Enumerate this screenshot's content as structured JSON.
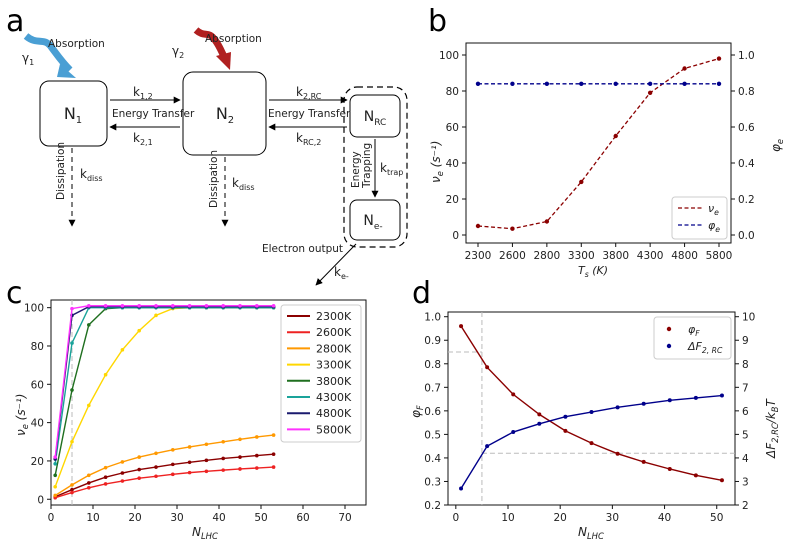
{
  "panels": {
    "a": "a",
    "b": "b",
    "c": "c",
    "d": "d"
  },
  "diagram": {
    "n1": "N",
    "n1_sub": "1",
    "n2": "N",
    "n2_sub": "2",
    "nrc": "N",
    "nrc_sub": "RC",
    "ne": "N",
    "ne_sub": "e-",
    "gamma1": "γ",
    "gamma1_sub": "1",
    "absorption1": "Absorption",
    "gamma2": "γ",
    "gamma2_sub": "2",
    "absorption2": "Absorption",
    "k12": "k",
    "k12_sub": "1,2",
    "k21": "k",
    "k21_sub": "2,1",
    "k2rc": "k",
    "k2rc_sub": "2,RC",
    "krc2": "k",
    "krc2_sub": "RC,2",
    "energy_transfer_1": "Energy Transfer",
    "energy_transfer_2": "Energy Transfer",
    "dissipation_1": "Dissipation",
    "dissipation_2": "Dissipation",
    "kdiss1": "k",
    "kdiss1_sub": "diss",
    "kdiss2": "k",
    "kdiss2_sub": "diss",
    "trapping_1": "Energy",
    "trapping_2": "Trapping",
    "ktrap": "k",
    "ktrap_sub": "trap",
    "electron_output": "Electron output",
    "ke": "k",
    "ke_sub": "e-"
  },
  "colors": {
    "blue_arrow": "#4a9fd4",
    "red_arrow": "#b02020",
    "dark_red": "#8b0000",
    "navy": "#00008b"
  },
  "chart_data": [
    {
      "id": "b",
      "type": "line",
      "categories": [
        "2300",
        "2600",
        "2800",
        "3300",
        "3800",
        "4300",
        "4800",
        "5800"
      ],
      "series": [
        {
          "name": "ν_e",
          "axis": "left",
          "color": "#8b0000",
          "values": [
            5,
            3.5,
            7.5,
            29.5,
            55,
            79,
            92.5,
            98
          ]
        },
        {
          "name": "φ_e",
          "axis": "right",
          "color": "#00008b",
          "values": [
            0.84,
            0.84,
            0.84,
            0.84,
            0.84,
            0.84,
            0.84,
            0.84
          ]
        }
      ],
      "xlabel_main": "T",
      "xlabel_sub": "s",
      "xlabel_unit": " (K)",
      "ylabel_left": "ν",
      "ylabel_left_sub": "e",
      "ylabel_left_unit": " (s⁻¹)",
      "ylabel_right": "φ",
      "ylabel_right_sub": "e",
      "ylim_left": [
        0,
        100
      ],
      "ylim_right": [
        0,
        1
      ],
      "yticks_left": [
        "0",
        "20",
        "40",
        "60",
        "80",
        "100"
      ],
      "yticks_right": [
        "0.0",
        "0.2",
        "0.4",
        "0.6",
        "0.8",
        "1.0"
      ],
      "legend": [
        {
          "label": "ν",
          "sub": "e"
        },
        {
          "label": "φ",
          "sub": "e"
        }
      ],
      "legend_position": "lower-right"
    },
    {
      "id": "c",
      "type": "line",
      "x": [
        1,
        5,
        9,
        13,
        17,
        21,
        25,
        29,
        33,
        37,
        41,
        45,
        49,
        53
      ],
      "series": [
        {
          "name": "2300K",
          "color": "#8b0000",
          "values": [
            1.3,
            5,
            8.5,
            11.5,
            13.7,
            15.5,
            16.8,
            18.2,
            19.3,
            20.3,
            21.3,
            22,
            22.8,
            23.5
          ]
        },
        {
          "name": "2600K",
          "color": "#ee2222",
          "values": [
            0.8,
            3.5,
            6,
            8,
            9.5,
            11,
            12,
            13,
            13.9,
            14.6,
            15.2,
            15.8,
            16.3,
            16.8
          ]
        },
        {
          "name": "2800K",
          "color": "#ff9900",
          "values": [
            2,
            7.5,
            12.5,
            16.5,
            19.5,
            22,
            24,
            25.8,
            27.3,
            28.7,
            30,
            31.3,
            32.5,
            33.5
          ]
        },
        {
          "name": "3300K",
          "color": "#ffd700",
          "values": [
            6.5,
            30,
            49,
            65,
            78,
            88,
            96,
            99.5,
            100,
            100,
            100,
            100,
            100,
            100
          ]
        },
        {
          "name": "3800K",
          "color": "#1f6f1f",
          "values": [
            12.5,
            57,
            91,
            99.5,
            100,
            100,
            100,
            100,
            100,
            100,
            100,
            100,
            100,
            100
          ]
        },
        {
          "name": "4300K",
          "color": "#1aa39a",
          "values": [
            18.5,
            81.5,
            100,
            100,
            100,
            100,
            100,
            100,
            100,
            100,
            100,
            100,
            100,
            100
          ]
        },
        {
          "name": "4800K",
          "color": "#1a1a6e",
          "values": [
            21,
            96,
            100.5,
            100.5,
            100.5,
            100.5,
            100.5,
            100.5,
            100.5,
            100.5,
            100.5,
            100.5,
            100.5,
            100.5
          ]
        },
        {
          "name": "5800K",
          "color": "#ff33ff",
          "values": [
            22,
            99.5,
            101,
            101,
            101,
            101,
            101,
            101,
            101,
            101,
            101,
            101,
            101,
            101
          ]
        }
      ],
      "vline_x": 5,
      "xlabel": "N",
      "xlabel_sub": "LHC",
      "ylabel": "ν",
      "ylabel_sub": "e",
      "ylabel_unit": " (s⁻¹)",
      "xlim": [
        0,
        75
      ],
      "ylim": [
        -3,
        104
      ],
      "xticks": [
        "0",
        "10",
        "20",
        "30",
        "40",
        "50",
        "60",
        "70"
      ],
      "yticks": [
        "0",
        "20",
        "40",
        "60",
        "80",
        "100"
      ],
      "legend_position": "right"
    },
    {
      "id": "d",
      "type": "line",
      "x": [
        1,
        6,
        11,
        16,
        21,
        26,
        31,
        36,
        41,
        46,
        51
      ],
      "series": [
        {
          "name": "φ_F",
          "axis": "left",
          "color": "#8b0000",
          "values": [
            0.96,
            0.785,
            0.67,
            0.585,
            0.515,
            0.463,
            0.418,
            0.383,
            0.353,
            0.326,
            0.305
          ]
        },
        {
          "name": "ΔF_2,RC",
          "axis": "right",
          "color": "#00008b",
          "values": [
            2.7,
            4.5,
            5.1,
            5.45,
            5.75,
            5.95,
            6.15,
            6.3,
            6.45,
            6.55,
            6.65
          ]
        }
      ],
      "xlabel": "N",
      "xlabel_sub": "LHC",
      "ylabel_left": "φ",
      "ylabel_left_sub": "F",
      "ylabel_right": "ΔF",
      "ylabel_right_sub": "2,RC",
      "ylabel_right_tail": "/k",
      "ylabel_right_tail_sub": "B",
      "ylabel_right_end": "T",
      "xlim": [
        -1.5,
        53.5
      ],
      "ylim_left": [
        0.2,
        1.02
      ],
      "ylim_right": [
        2,
        10.2
      ],
      "xticks": [
        "0",
        "10",
        "20",
        "30",
        "40",
        "50"
      ],
      "yticks_left": [
        "0.2",
        "0.3",
        "0.4",
        "0.5",
        "0.6",
        "0.7",
        "0.8",
        "0.9",
        "1.0"
      ],
      "yticks_right": [
        "2",
        "3",
        "4",
        "5",
        "6",
        "7",
        "8",
        "9",
        "10"
      ],
      "guides": {
        "vline_x": 5,
        "hline_left": 0.85,
        "hline_right": 4.2
      },
      "legend": [
        {
          "label": "φ",
          "sub": "F"
        },
        {
          "label": "ΔF",
          "sub": "2, RC"
        }
      ],
      "legend_position": "upper-right"
    }
  ]
}
